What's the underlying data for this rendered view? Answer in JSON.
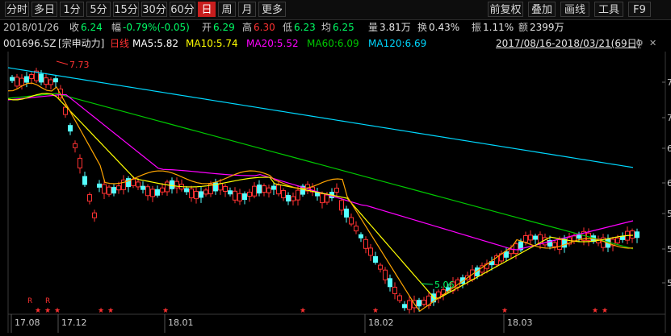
{
  "toolbar": {
    "left_buttons": [
      {
        "label": "分时",
        "active": false
      },
      {
        "label": "多日",
        "active": false
      },
      {
        "label": "1分",
        "active": false
      },
      {
        "label": "5分",
        "active": false
      },
      {
        "label": "15分",
        "active": false
      },
      {
        "label": "30分",
        "active": false
      },
      {
        "label": "60分",
        "active": false
      },
      {
        "label": "日",
        "active": true
      },
      {
        "label": "周",
        "active": false
      },
      {
        "label": "月",
        "active": false
      },
      {
        "label": "更多",
        "active": false
      }
    ],
    "right_buttons": [
      {
        "label": "前复权"
      },
      {
        "label": "叠加"
      },
      {
        "label": "画线"
      },
      {
        "label": "工具"
      },
      {
        "label": "F9"
      }
    ]
  },
  "info": {
    "date": "2018/01/26",
    "close_label": "收",
    "close_value": "6.24",
    "change_label": "幅",
    "change_value": "-0.79%(-0.05)",
    "open_label": "开",
    "open_value": "6.29",
    "high_label": "高",
    "high_value": "6.30",
    "low_label": "低",
    "low_value": "6.23",
    "avg_label": "均",
    "avg_value": "6.25",
    "volume_label": "量",
    "volume_value": "3.81万",
    "turnover_label": "换",
    "turnover_value": "0.43%",
    "amplitude_label": "振",
    "amplitude_value": "1.11%",
    "amount_label": "额",
    "amount_value": "2399万"
  },
  "ma_bar": {
    "code": "001696.SZ",
    "name": "[宗申动力]",
    "line_type": "日线",
    "ma5": "MA5:5.82",
    "ma10": "MA10:5.74",
    "ma20": "MA20:5.52",
    "ma60": "MA60:6.09",
    "ma120": "MA120:6.69",
    "range": "2017/08/16-2018/03/21(69日)"
  },
  "colors": {
    "up": "#ff3232",
    "down": "#54ffff",
    "ma5": "#ffffff",
    "ma10": "#ffff00",
    "ma20": "#ff00ff",
    "ma60": "#00c800",
    "ma120": "#00d8ff",
    "active_tab": "#c81e1e"
  },
  "chart_data": {
    "type": "candlestick",
    "x_labels": [
      "17.08",
      "17.12",
      "18.01",
      "18.02",
      "18.03"
    ],
    "y_ticks": [
      "7",
      "7",
      "6",
      "6",
      "5",
      "5",
      "5"
    ],
    "max_label": "7.73",
    "min_label": "5.06",
    "markers": [
      "R",
      "R"
    ]
  }
}
